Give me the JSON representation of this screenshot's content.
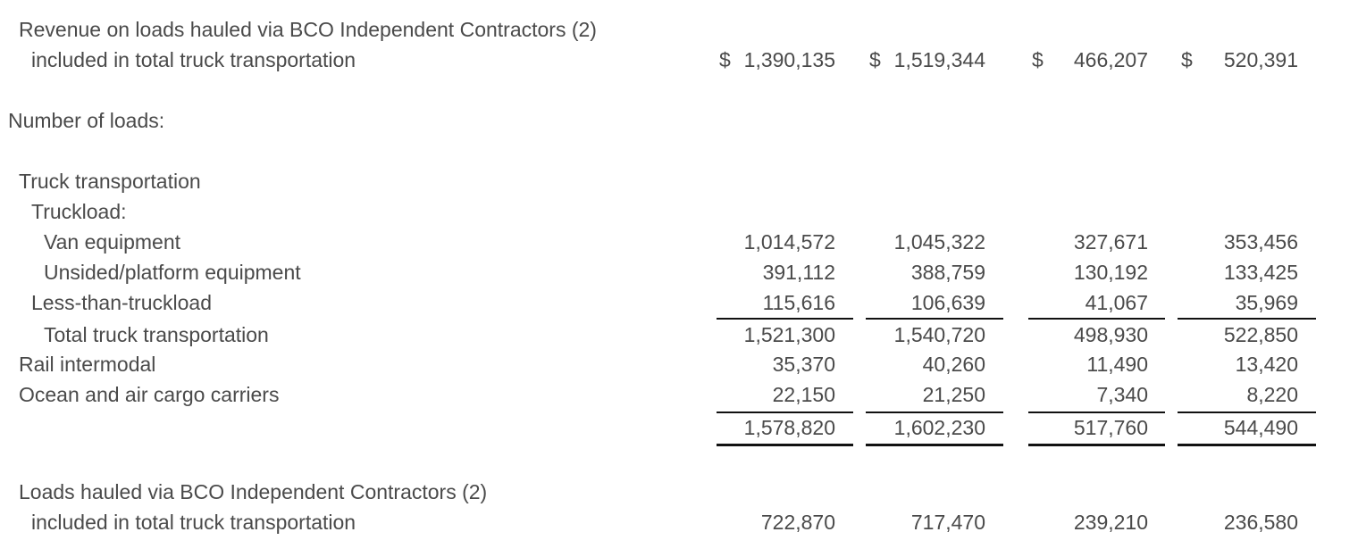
{
  "revenue_bco": {
    "label_line1": "Revenue on loads hauled via BCO Independent Contractors (2)",
    "label_line2": "included in total truck transportation",
    "currency_symbol": "$",
    "values": [
      "1,390,135",
      "1,519,344",
      "466,207",
      "520,391"
    ]
  },
  "number_of_loads": {
    "heading": "Number of loads:",
    "truck_transportation_label": "Truck transportation",
    "truckload_label": "Truckload:",
    "rows": {
      "van": {
        "label": "Van equipment",
        "values": [
          "1,014,572",
          "1,045,322",
          "327,671",
          "353,456"
        ]
      },
      "unsided": {
        "label": "Unsided/platform equipment",
        "values": [
          "391,112",
          "388,759",
          "130,192",
          "133,425"
        ]
      },
      "ltl": {
        "label": "Less-than-truckload",
        "values": [
          "115,616",
          "106,639",
          "41,067",
          "35,969"
        ]
      },
      "total_truck": {
        "label": "Total truck transportation",
        "values": [
          "1,521,300",
          "1,540,720",
          "498,930",
          "522,850"
        ]
      },
      "rail": {
        "label": "Rail intermodal",
        "values": [
          "35,370",
          "40,260",
          "11,490",
          "13,420"
        ]
      },
      "ocean": {
        "label": "Ocean and air cargo carriers",
        "values": [
          "22,150",
          "21,250",
          "7,340",
          "8,220"
        ]
      },
      "grand_total": {
        "values": [
          "1,578,820",
          "1,602,230",
          "517,760",
          "544,490"
        ]
      }
    }
  },
  "loads_bco": {
    "label_line1": "Loads hauled via BCO Independent Contractors (2)",
    "label_line2": "included in total truck transportation",
    "values": [
      "722,870",
      "717,470",
      "239,210",
      "236,580"
    ]
  }
}
